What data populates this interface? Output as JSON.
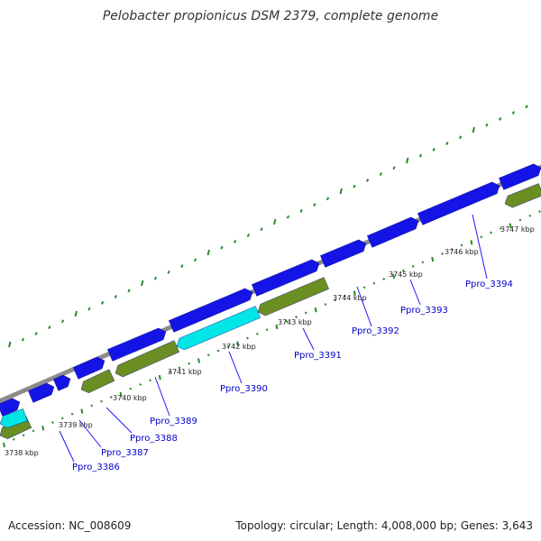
{
  "title": "Pelobacter propionicus DSM 2379, complete genome",
  "footer": {
    "accession": "Accession: NC_008609",
    "summary": "Topology: circular; Length: 4,008,000 bp; Genes: 3,643"
  },
  "colors": {
    "backbone": "#8c8c8c",
    "forward_gene": "#1414e6",
    "reverse_gene": "#6b8e23",
    "highlight_gene": "#00e5e5",
    "tick": "#2a8a2a",
    "label_line": "#1a1aff",
    "label_text": "#0000cc"
  },
  "kbp_marks": [
    {
      "label": "3738 kbp"
    },
    {
      "label": "3739 kbp"
    },
    {
      "label": "3740 kbp"
    },
    {
      "label": "3741 kbp"
    },
    {
      "label": "3742 kbp"
    },
    {
      "label": "3743 kbp"
    },
    {
      "label": "3744 kbp"
    },
    {
      "label": "3745 kbp"
    },
    {
      "label": "3746 kbp"
    },
    {
      "label": "3747 kbp"
    }
  ],
  "gene_labels": [
    {
      "label": "Ppro_3386"
    },
    {
      "label": "Ppro_3387"
    },
    {
      "label": "Ppro_3388"
    },
    {
      "label": "Ppro_3389"
    },
    {
      "label": "Ppro_3390"
    },
    {
      "label": "Ppro_3391"
    },
    {
      "label": "Ppro_3392"
    },
    {
      "label": "Ppro_3393"
    },
    {
      "label": "Ppro_3394"
    }
  ]
}
